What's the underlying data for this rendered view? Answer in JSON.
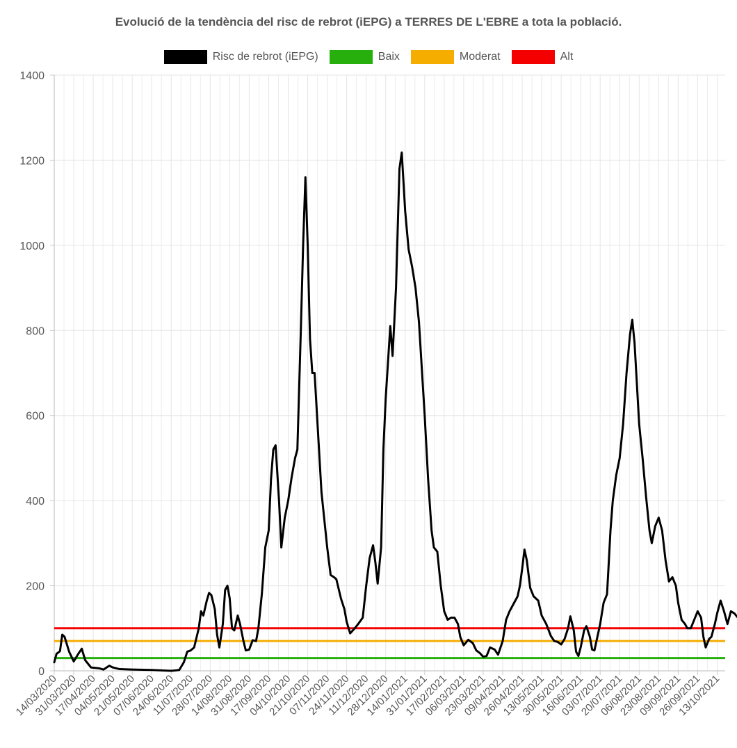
{
  "chart_data": {
    "type": "line",
    "title": "Evolució de la tendència del risc de rebrot (iEPG) a TERRES DE L'EBRE a tota la població.",
    "xlabel": "",
    "ylabel": "",
    "ylim": [
      0,
      1400
    ],
    "yticks": [
      0,
      200,
      400,
      600,
      800,
      1000,
      1200,
      1400
    ],
    "xtick_labels": [
      "14/03/2020",
      "31/03/2020",
      "17/04/2020",
      "04/05/2020",
      "21/05/2020",
      "07/06/2020",
      "24/06/2020",
      "11/07/2020",
      "28/07/2020",
      "14/08/2020",
      "31/08/2020",
      "17/09/2020",
      "04/10/2020",
      "21/10/2020",
      "07/11/2020",
      "24/11/2020",
      "11/12/2020",
      "28/12/2020",
      "14/01/2021",
      "31/01/2021",
      "17/02/2021",
      "06/03/2021",
      "23/03/2021",
      "09/04/2021",
      "26/04/2021",
      "13/05/2021",
      "30/05/2021",
      "16/06/2021",
      "03/07/2021",
      "20/07/2021",
      "06/08/2021",
      "23/08/2021",
      "09/09/2021",
      "26/09/2021",
      "13/10/2021"
    ],
    "x_start": "14/03/2020",
    "x_end": "20/10/2021",
    "legend_position": "top",
    "grid": true,
    "series": [
      {
        "name": "Risc de rebrot (iEPG)",
        "color": "#000000",
        "points": [
          [
            "14/03/2020",
            20
          ],
          [
            "16/03/2020",
            40
          ],
          [
            "19/03/2020",
            46
          ],
          [
            "21/03/2020",
            85
          ],
          [
            "23/03/2020",
            80
          ],
          [
            "27/03/2020",
            45
          ],
          [
            "31/03/2020",
            22
          ],
          [
            "04/04/2020",
            40
          ],
          [
            "07/04/2020",
            52
          ],
          [
            "10/04/2020",
            25
          ],
          [
            "15/04/2020",
            8
          ],
          [
            "22/04/2020",
            6
          ],
          [
            "26/04/2020",
            3
          ],
          [
            "01/05/2020",
            12
          ],
          [
            "04/05/2020",
            8
          ],
          [
            "10/05/2020",
            4
          ],
          [
            "21/05/2020",
            3
          ],
          [
            "07/06/2020",
            2
          ],
          [
            "24/06/2020",
            0
          ],
          [
            "01/07/2020",
            2
          ],
          [
            "05/07/2020",
            20
          ],
          [
            "08/07/2020",
            45
          ],
          [
            "11/07/2020",
            48
          ],
          [
            "14/07/2020",
            55
          ],
          [
            "18/07/2020",
            100
          ],
          [
            "20/07/2020",
            140
          ],
          [
            "22/07/2020",
            130
          ],
          [
            "25/07/2020",
            165
          ],
          [
            "27/07/2020",
            183
          ],
          [
            "29/07/2020",
            178
          ],
          [
            "01/08/2020",
            145
          ],
          [
            "03/08/2020",
            85
          ],
          [
            "05/08/2020",
            55
          ],
          [
            "08/08/2020",
            110
          ],
          [
            "10/08/2020",
            190
          ],
          [
            "12/08/2020",
            200
          ],
          [
            "14/08/2020",
            170
          ],
          [
            "16/08/2020",
            100
          ],
          [
            "18/08/2020",
            95
          ],
          [
            "21/08/2020",
            130
          ],
          [
            "23/08/2020",
            110
          ],
          [
            "26/08/2020",
            70
          ],
          [
            "28/08/2020",
            48
          ],
          [
            "31/08/2020",
            50
          ],
          [
            "03/09/2020",
            72
          ],
          [
            "06/09/2020",
            70
          ],
          [
            "08/09/2020",
            100
          ],
          [
            "11/09/2020",
            180
          ],
          [
            "14/09/2020",
            290
          ],
          [
            "17/09/2020",
            330
          ],
          [
            "19/09/2020",
            450
          ],
          [
            "21/09/2020",
            520
          ],
          [
            "23/09/2020",
            530
          ],
          [
            "26/09/2020",
            400
          ],
          [
            "28/09/2020",
            290
          ],
          [
            "01/10/2020",
            360
          ],
          [
            "04/10/2020",
            400
          ],
          [
            "07/10/2020",
            455
          ],
          [
            "10/10/2020",
            500
          ],
          [
            "12/10/2020",
            520
          ],
          [
            "15/10/2020",
            800
          ],
          [
            "17/10/2020",
            1000
          ],
          [
            "19/10/2020",
            1160
          ],
          [
            "21/10/2020",
            1000
          ],
          [
            "23/10/2020",
            780
          ],
          [
            "25/10/2020",
            700
          ],
          [
            "27/10/2020",
            700
          ],
          [
            "30/10/2020",
            560
          ],
          [
            "02/11/2020",
            420
          ],
          [
            "07/11/2020",
            290
          ],
          [
            "10/11/2020",
            225
          ],
          [
            "13/11/2020",
            220
          ],
          [
            "15/11/2020",
            215
          ],
          [
            "19/11/2020",
            170
          ],
          [
            "22/11/2020",
            145
          ],
          [
            "24/11/2020",
            115
          ],
          [
            "27/11/2020",
            88
          ],
          [
            "01/12/2020",
            100
          ],
          [
            "04/12/2020",
            110
          ],
          [
            "08/12/2020",
            125
          ],
          [
            "11/12/2020",
            200
          ],
          [
            "14/12/2020",
            265
          ],
          [
            "17/12/2020",
            295
          ],
          [
            "19/12/2020",
            255
          ],
          [
            "21/12/2020",
            205
          ],
          [
            "24/12/2020",
            290
          ],
          [
            "26/12/2020",
            520
          ],
          [
            "28/12/2020",
            640
          ],
          [
            "01/01/2021",
            810
          ],
          [
            "03/01/2021",
            740
          ],
          [
            "06/01/2021",
            900
          ],
          [
            "09/01/2021",
            1180
          ],
          [
            "11/01/2021",
            1218
          ],
          [
            "14/01/2021",
            1080
          ],
          [
            "17/01/2021",
            990
          ],
          [
            "20/01/2021",
            950
          ],
          [
            "23/01/2021",
            900
          ],
          [
            "26/01/2021",
            820
          ],
          [
            "31/01/2021",
            600
          ],
          [
            "03/02/2021",
            450
          ],
          [
            "06/02/2021",
            330
          ],
          [
            "08/02/2021",
            290
          ],
          [
            "11/02/2021",
            280
          ],
          [
            "14/02/2021",
            200
          ],
          [
            "17/02/2021",
            140
          ],
          [
            "20/02/2021",
            120
          ],
          [
            "23/02/2021",
            125
          ],
          [
            "26/02/2021",
            125
          ],
          [
            "01/03/2021",
            110
          ],
          [
            "03/03/2021",
            80
          ],
          [
            "06/03/2021",
            60
          ],
          [
            "10/03/2021",
            73
          ],
          [
            "14/03/2021",
            65
          ],
          [
            "17/03/2021",
            48
          ],
          [
            "20/03/2021",
            42
          ],
          [
            "23/03/2021",
            33
          ],
          [
            "26/03/2021",
            35
          ],
          [
            "29/03/2021",
            55
          ],
          [
            "02/04/2021",
            50
          ],
          [
            "05/04/2021",
            38
          ],
          [
            "09/04/2021",
            70
          ],
          [
            "12/04/2021",
            120
          ],
          [
            "15/04/2021",
            140
          ],
          [
            "18/04/2021",
            155
          ],
          [
            "22/04/2021",
            175
          ],
          [
            "24/04/2021",
            200
          ],
          [
            "26/04/2021",
            240
          ],
          [
            "28/04/2021",
            285
          ],
          [
            "30/04/2021",
            260
          ],
          [
            "03/05/2021",
            195
          ],
          [
            "06/05/2021",
            175
          ],
          [
            "10/05/2021",
            165
          ],
          [
            "13/05/2021",
            130
          ],
          [
            "17/05/2021",
            110
          ],
          [
            "21/05/2021",
            82
          ],
          [
            "24/05/2021",
            70
          ],
          [
            "27/05/2021",
            68
          ],
          [
            "30/05/2021",
            62
          ],
          [
            "02/06/2021",
            75
          ],
          [
            "05/06/2021",
            100
          ],
          [
            "07/06/2021",
            128
          ],
          [
            "10/06/2021",
            95
          ],
          [
            "12/06/2021",
            45
          ],
          [
            "14/06/2021",
            35
          ],
          [
            "16/06/2021",
            55
          ],
          [
            "19/06/2021",
            95
          ],
          [
            "21/06/2021",
            105
          ],
          [
            "24/06/2021",
            80
          ],
          [
            "26/06/2021",
            50
          ],
          [
            "28/06/2021",
            48
          ],
          [
            "03/07/2021",
            110
          ],
          [
            "06/07/2021",
            160
          ],
          [
            "09/07/2021",
            180
          ],
          [
            "12/07/2021",
            330
          ],
          [
            "14/07/2021",
            400
          ],
          [
            "17/07/2021",
            460
          ],
          [
            "20/07/2021",
            500
          ],
          [
            "23/07/2021",
            580
          ],
          [
            "26/07/2021",
            700
          ],
          [
            "29/07/2021",
            790
          ],
          [
            "31/07/2021",
            825
          ],
          [
            "02/08/2021",
            770
          ],
          [
            "06/08/2021",
            580
          ],
          [
            "09/08/2021",
            500
          ],
          [
            "12/08/2021",
            410
          ],
          [
            "15/08/2021",
            330
          ],
          [
            "17/08/2021",
            300
          ],
          [
            "20/08/2021",
            340
          ],
          [
            "23/08/2021",
            360
          ],
          [
            "26/08/2021",
            330
          ],
          [
            "29/08/2021",
            260
          ],
          [
            "01/09/2021",
            210
          ],
          [
            "04/09/2021",
            220
          ],
          [
            "07/09/2021",
            200
          ],
          [
            "09/09/2021",
            160
          ],
          [
            "12/09/2021",
            120
          ],
          [
            "15/09/2021",
            110
          ],
          [
            "17/09/2021",
            100
          ],
          [
            "20/09/2021",
            100
          ],
          [
            "23/09/2021",
            120
          ],
          [
            "26/09/2021",
            140
          ],
          [
            "29/09/2021",
            125
          ],
          [
            "01/10/2021",
            80
          ],
          [
            "03/10/2021",
            55
          ],
          [
            "06/10/2021",
            75
          ],
          [
            "08/10/2021",
            80
          ],
          [
            "11/10/2021",
            110
          ],
          [
            "13/10/2021",
            135
          ],
          [
            "16/10/2021",
            165
          ],
          [
            "19/10/2021",
            140
          ],
          [
            "22/10/2021",
            110
          ],
          [
            "25/10/2021",
            140
          ],
          [
            "28/10/2021",
            135
          ],
          [
            "31/10/2021",
            125
          ]
        ]
      },
      {
        "name": "Baix",
        "color": "#27b00d",
        "value": 30
      },
      {
        "name": "Moderat",
        "color": "#f5ad00",
        "value": 70
      },
      {
        "name": "Alt",
        "color": "#f50000",
        "value": 100
      }
    ]
  }
}
